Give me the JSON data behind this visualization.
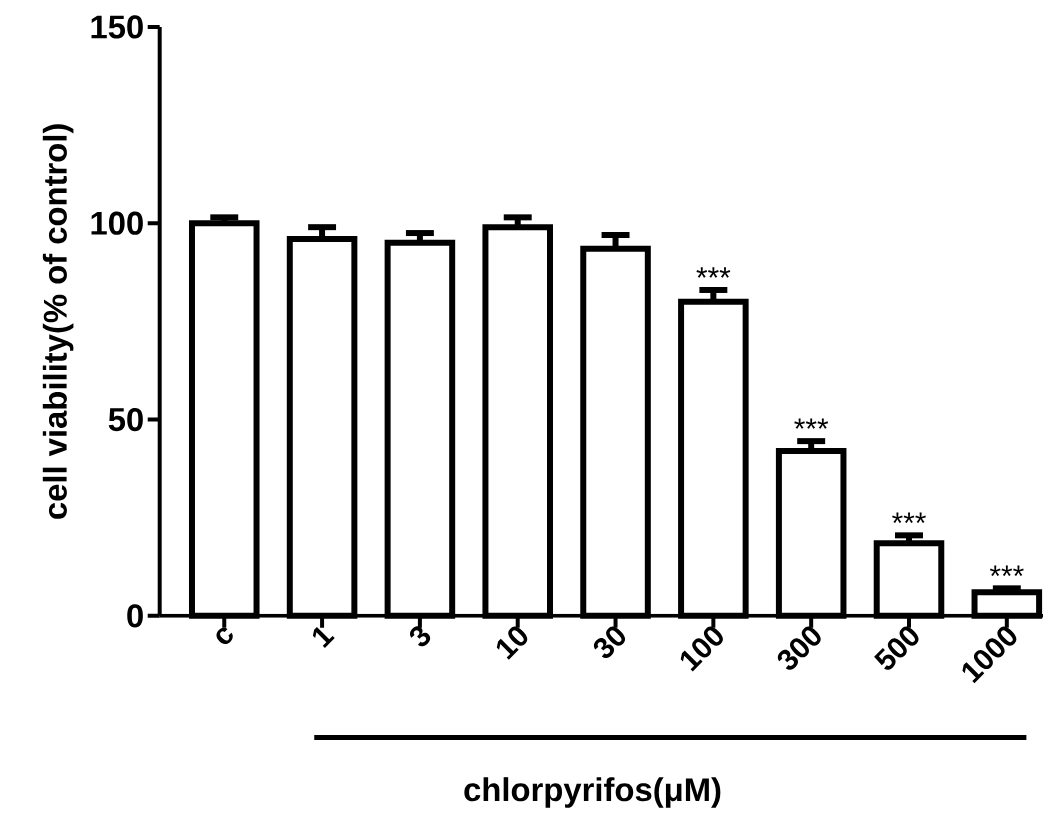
{
  "chart_data": {
    "type": "bar",
    "xlabel": "chlorpyrifos(μM)",
    "ylabel": "cell viability(% of control)",
    "categories": [
      "c",
      "1",
      "3",
      "10",
      "30",
      "100",
      "300",
      "500",
      "1000"
    ],
    "values": [
      100,
      96,
      95,
      99,
      93.5,
      80,
      42,
      18.5,
      6
    ],
    "errors": [
      1.5,
      3,
      2.5,
      2.5,
      3.5,
      3,
      2.5,
      2,
      1
    ],
    "color": "#000000",
    "ylim": [
      0,
      150
    ],
    "yticks": [
      0,
      50,
      100,
      150
    ],
    "grid": false,
    "annotations": [
      {
        "text": "***",
        "x": "100",
        "y": 83
      },
      {
        "text": "***",
        "x": "300",
        "y": 44.5
      },
      {
        "text": "***",
        "x": "500",
        "y": 20.5
      },
      {
        "text": "***",
        "x": "1000",
        "y": 7
      }
    ]
  }
}
